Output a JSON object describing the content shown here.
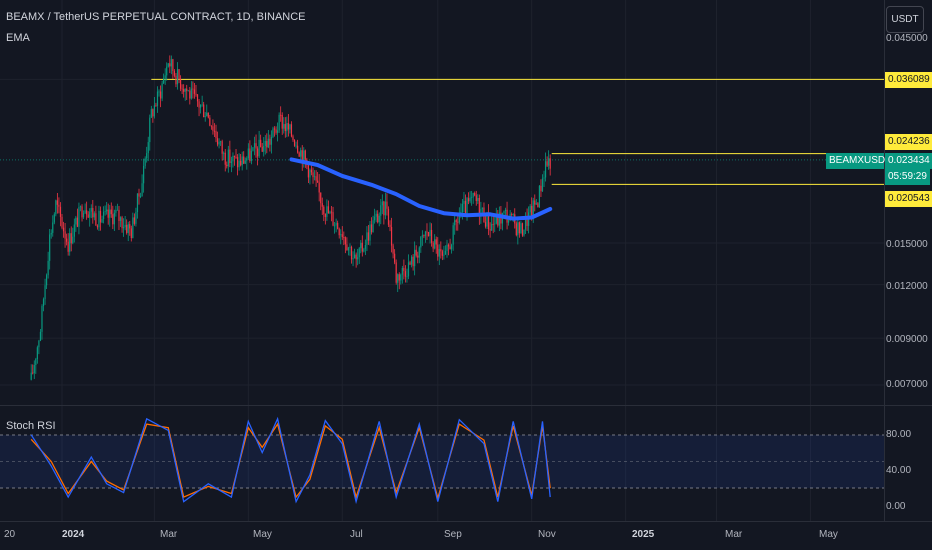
{
  "header": {
    "ticker_title": "BEAMX / TetherUS PERPETUAL CONTRACT, 1D, BINANCE",
    "indicator_label": "EMA",
    "oscillator_label": "Stoch RSI"
  },
  "currency_button": "USDT",
  "price_axis": {
    "top_partial": "0.045000",
    "ticks": [
      "0.015000",
      "0.012000",
      "0.009000",
      "0.007000"
    ]
  },
  "level_labels": {
    "resistance": "0.036089",
    "upper": "0.024236",
    "current": "0.023434",
    "countdown": "05:59:29",
    "lower": "0.020543"
  },
  "symbol_tag": "BEAMXUSDT.P",
  "oscillator_axis": [
    "80.00",
    "40.00",
    "0.00"
  ],
  "time_axis": [
    "20",
    "2024",
    "Mar",
    "May",
    "Jul",
    "Sep",
    "Nov",
    "2025",
    "Mar",
    "May"
  ],
  "colors": {
    "background": "#131722",
    "up_candle": "#089981",
    "down_candle": "#f23645",
    "ema_line": "#2962ff",
    "level_line": "#ffeb3b",
    "stoch_k": "#2962ff",
    "stoch_d": "#ff6d00"
  },
  "chart_data": [
    {
      "type": "candlestick",
      "title": "BEAMX / TetherUS PERPETUAL CONTRACT, 1D, BINANCE",
      "ylim": [
        0.006,
        0.05
      ],
      "y_scale": "log",
      "close_path": [
        [
          "2023-12-12",
          0.0072
        ],
        [
          "2023-12-18",
          0.0095
        ],
        [
          "2023-12-24",
          0.0155
        ],
        [
          "2023-12-28",
          0.0185
        ],
        [
          "2024-01-05",
          0.015
        ],
        [
          "2024-01-15",
          0.0185
        ],
        [
          "2024-01-25",
          0.017
        ],
        [
          "2024-02-05",
          0.0175
        ],
        [
          "2024-02-15",
          0.016
        ],
        [
          "2024-02-22",
          0.021
        ],
        [
          "2024-02-28",
          0.03
        ],
        [
          "2024-03-05",
          0.034
        ],
        [
          "2024-03-10",
          0.04
        ],
        [
          "2024-03-15",
          0.037
        ],
        [
          "2024-03-25",
          0.033
        ],
        [
          "2024-04-05",
          0.03
        ],
        [
          "2024-04-15",
          0.024
        ],
        [
          "2024-04-25",
          0.023
        ],
        [
          "2024-05-05",
          0.0245
        ],
        [
          "2024-05-15",
          0.026
        ],
        [
          "2024-05-22",
          0.029
        ],
        [
          "2024-06-01",
          0.026
        ],
        [
          "2024-06-10",
          0.022
        ],
        [
          "2024-06-20",
          0.018
        ],
        [
          "2024-07-01",
          0.016
        ],
        [
          "2024-07-10",
          0.0135
        ],
        [
          "2024-07-20",
          0.0165
        ],
        [
          "2024-07-30",
          0.0185
        ],
        [
          "2024-08-05",
          0.0125
        ],
        [
          "2024-08-15",
          0.0135
        ],
        [
          "2024-08-25",
          0.016
        ],
        [
          "2024-09-05",
          0.0135
        ],
        [
          "2024-09-15",
          0.0175
        ],
        [
          "2024-09-25",
          0.019
        ],
        [
          "2024-10-05",
          0.0165
        ],
        [
          "2024-10-15",
          0.0175
        ],
        [
          "2024-10-25",
          0.016
        ],
        [
          "2024-11-05",
          0.019
        ],
        [
          "2024-11-10",
          0.023
        ],
        [
          "2024-11-13",
          0.0234
        ]
      ],
      "series": [
        {
          "name": "EMA",
          "points": [
            [
              "2024-05-29",
              0.0235
            ],
            [
              "2024-06-15",
              0.0228
            ],
            [
              "2024-07-01",
              0.0215
            ],
            [
              "2024-07-20",
              0.0205
            ],
            [
              "2024-08-05",
              0.0195
            ],
            [
              "2024-08-20",
              0.0183
            ],
            [
              "2024-09-05",
              0.0176
            ],
            [
              "2024-09-20",
              0.0174
            ],
            [
              "2024-10-05",
              0.0175
            ],
            [
              "2024-10-20",
              0.0171
            ],
            [
              "2024-11-01",
              0.0172
            ],
            [
              "2024-11-13",
              0.018
            ]
          ]
        }
      ],
      "horizontal_levels": [
        0.036089,
        0.024236,
        0.020543
      ],
      "current_price": 0.023434
    },
    {
      "type": "line",
      "title": "Stoch RSI",
      "ylim": [
        0,
        100
      ],
      "bands": [
        20,
        80
      ],
      "ticks": [
        80,
        40,
        0
      ],
      "series": [
        {
          "name": "K",
          "points": [
            [
              "2023-12-12",
              80
            ],
            [
              "2023-12-25",
              45
            ],
            [
              "2024-01-05",
              10
            ],
            [
              "2024-01-20",
              55
            ],
            [
              "2024-01-30",
              25
            ],
            [
              "2024-02-10",
              15
            ],
            [
              "2024-02-25",
              98
            ],
            [
              "2024-03-10",
              85
            ],
            [
              "2024-03-20",
              5
            ],
            [
              "2024-04-05",
              25
            ],
            [
              "2024-04-20",
              10
            ],
            [
              "2024-05-01",
              95
            ],
            [
              "2024-05-10",
              60
            ],
            [
              "2024-05-20",
              98
            ],
            [
              "2024-06-01",
              5
            ],
            [
              "2024-06-10",
              35
            ],
            [
              "2024-06-20",
              96
            ],
            [
              "2024-07-01",
              70
            ],
            [
              "2024-07-10",
              5
            ],
            [
              "2024-07-25",
              95
            ],
            [
              "2024-08-05",
              10
            ],
            [
              "2024-08-20",
              92
            ],
            [
              "2024-09-01",
              5
            ],
            [
              "2024-09-15",
              97
            ],
            [
              "2024-10-01",
              70
            ],
            [
              "2024-10-10",
              5
            ],
            [
              "2024-10-20",
              95
            ],
            [
              "2024-11-01",
              8
            ],
            [
              "2024-11-08",
              95
            ],
            [
              "2024-11-13",
              10
            ]
          ]
        },
        {
          "name": "D",
          "points": [
            [
              "2023-12-12",
              75
            ],
            [
              "2023-12-25",
              50
            ],
            [
              "2024-01-05",
              14
            ],
            [
              "2024-01-20",
              50
            ],
            [
              "2024-01-30",
              28
            ],
            [
              "2024-02-10",
              18
            ],
            [
              "2024-02-25",
              92
            ],
            [
              "2024-03-10",
              88
            ],
            [
              "2024-03-20",
              10
            ],
            [
              "2024-04-05",
              22
            ],
            [
              "2024-04-20",
              14
            ],
            [
              "2024-05-01",
              88
            ],
            [
              "2024-05-10",
              66
            ],
            [
              "2024-05-20",
              92
            ],
            [
              "2024-06-01",
              10
            ],
            [
              "2024-06-10",
              30
            ],
            [
              "2024-06-20",
              90
            ],
            [
              "2024-07-01",
              75
            ],
            [
              "2024-07-10",
              10
            ],
            [
              "2024-07-25",
              88
            ],
            [
              "2024-08-05",
              15
            ],
            [
              "2024-08-20",
              88
            ],
            [
              "2024-09-01",
              9
            ],
            [
              "2024-09-15",
              92
            ],
            [
              "2024-10-01",
              74
            ],
            [
              "2024-10-10",
              10
            ],
            [
              "2024-10-20",
              90
            ],
            [
              "2024-11-01",
              12
            ],
            [
              "2024-11-08",
              90
            ],
            [
              "2024-11-13",
              20
            ]
          ]
        }
      ]
    }
  ]
}
